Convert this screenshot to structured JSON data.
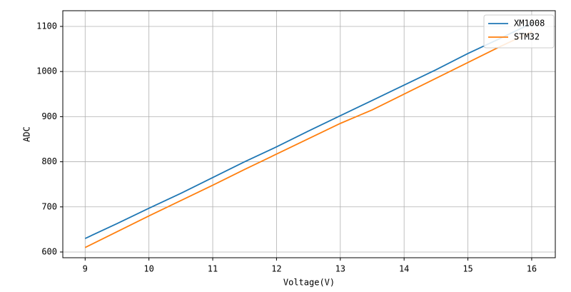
{
  "chart_data": {
    "type": "line",
    "x_label": "Voltage(V)",
    "y_label": "ADC",
    "x": [
      9,
      9.5,
      10,
      10.5,
      11,
      11.5,
      12,
      12.5,
      13,
      13.5,
      14,
      14.5,
      15,
      15.5,
      16
    ],
    "series": [
      {
        "name": "XM1008",
        "color": "#1f77b4",
        "values": [
          630,
          663,
          697,
          730,
          765,
          800,
          833,
          868,
          902,
          936,
          970,
          1004,
          1040,
          1073,
          1107
        ]
      },
      {
        "name": "STM32",
        "color": "#ff7f0e",
        "values": [
          610,
          645,
          680,
          714,
          748,
          783,
          817,
          851,
          885,
          915,
          950,
          985,
          1020,
          1055,
          1088
        ]
      }
    ],
    "xlim": [
      8.65,
      16.37
    ],
    "xticks": [
      9,
      10,
      11,
      12,
      13,
      14,
      15,
      16
    ],
    "ylim": [
      587.3,
      1134.8
    ],
    "yticks": [
      600,
      700,
      800,
      900,
      1000,
      1100
    ],
    "grid": true,
    "legend": "upper right"
  }
}
